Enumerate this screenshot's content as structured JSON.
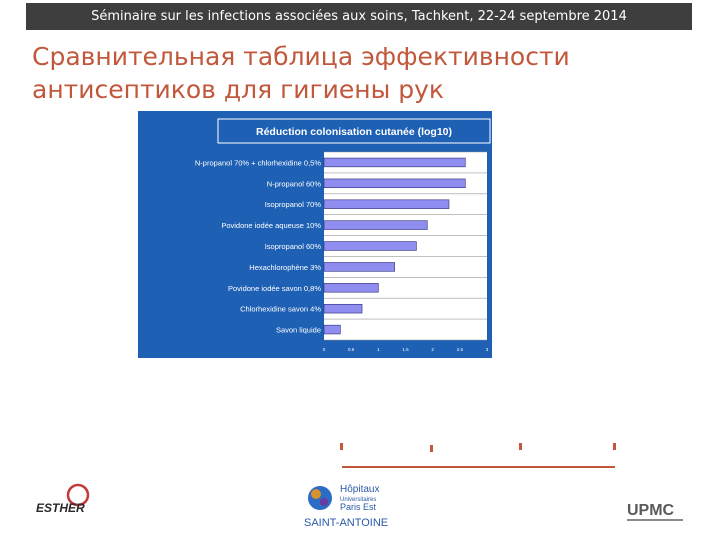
{
  "header": {
    "banner": "Séminaire sur les infections associées aux soins, Tachkent, 22-24 septembre 2014"
  },
  "slide": {
    "title_line1": "Сравнительная таблица эффективности",
    "title_line2": "антисептиков для гигиены рук"
  },
  "chart_data": {
    "type": "bar",
    "orientation": "horizontal",
    "title": "Réduction colonisation cutanée (log10)",
    "categories": [
      "N-propanol 70% + chlorhexidine 0,5%",
      "N-propanol 60%",
      "Isopropanol 70%",
      "Povidone iodée aqueuse 10%",
      "Isopropanol 60%",
      "Hexachlorophène 3%",
      "Povidone iodée savon 0,8%",
      "Chlorhexidine savon 4%",
      "Savon liquide"
    ],
    "values": [
      2.6,
      2.6,
      2.3,
      1.9,
      1.7,
      1.3,
      1.0,
      0.7,
      0.3
    ],
    "x_ticks": [
      "0",
      "0.5",
      "1",
      "1.5",
      "2",
      "2.5",
      "3"
    ],
    "xlim": [
      0,
      3
    ],
    "grid": true,
    "colors": {
      "panel": "#1e60b4",
      "plot": "#ffffff",
      "bar": "#8f8df0",
      "bar_edge": "#2a2a78",
      "text": "#ffffff"
    }
  },
  "logos": {
    "esther": "ESTHER",
    "hopitaux_line1": "Hôpitaux",
    "hopitaux_line2": "Universitaires",
    "hopitaux_line3": "Paris Est",
    "saint_antoine": "SAINT-ANTOINE",
    "upmc": "UPMC"
  }
}
